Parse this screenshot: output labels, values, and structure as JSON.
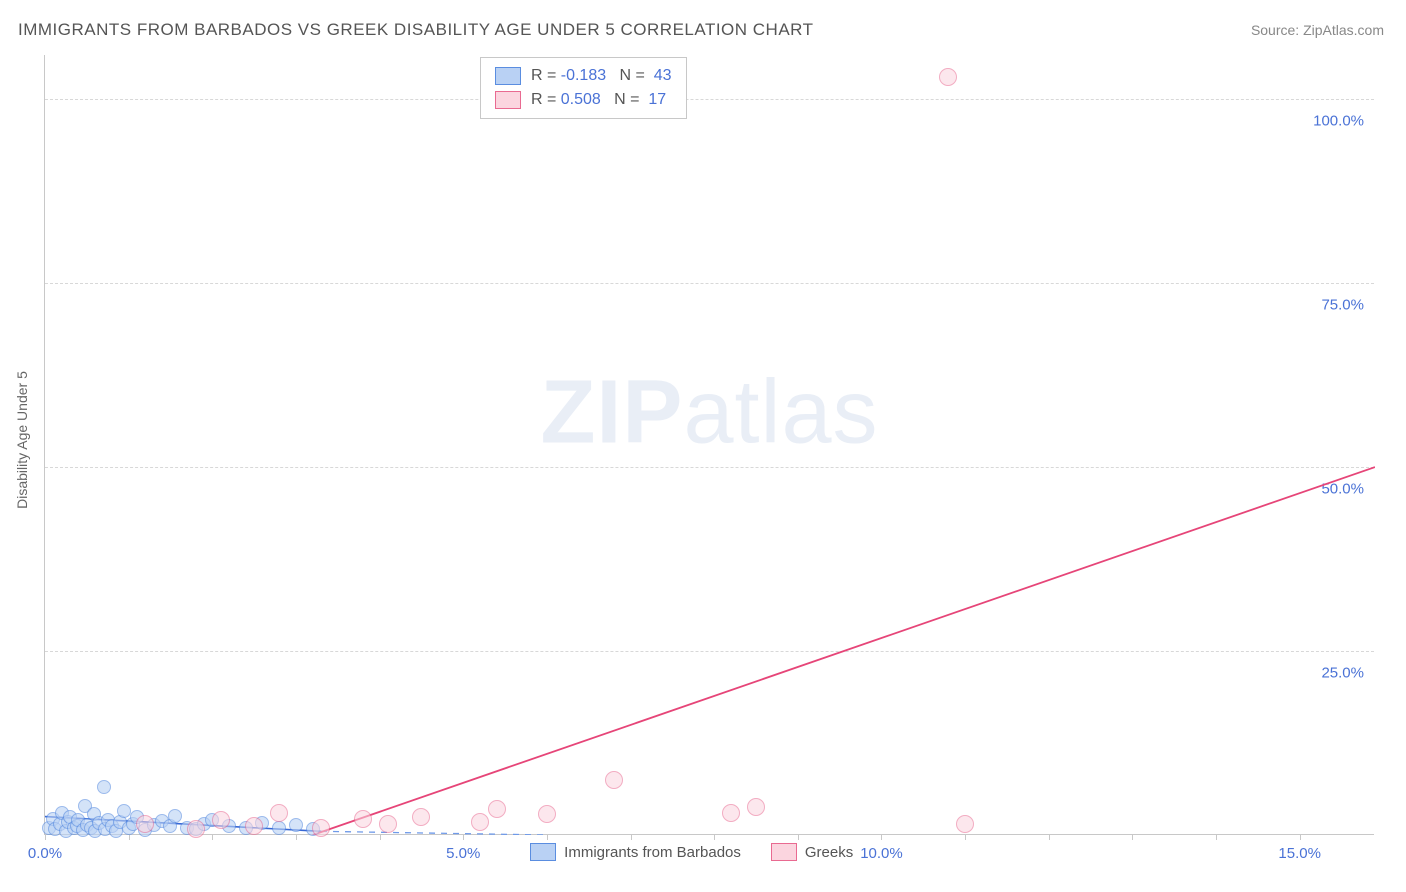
{
  "title": "IMMIGRANTS FROM BARBADOS VS GREEK DISABILITY AGE UNDER 5 CORRELATION CHART",
  "source": "Source: ZipAtlas.com",
  "watermark_bold": "ZIP",
  "watermark_rest": "atlas",
  "y_axis_title": "Disability Age Under 5",
  "chart": {
    "type": "scatter",
    "background_color": "#ffffff",
    "grid_color": "#d8d8d8",
    "axis_color": "#c8c8c8",
    "xlim": [
      0,
      15.9
    ],
    "ylim": [
      0,
      106
    ],
    "xticks": [
      0.0,
      5.0,
      10.0,
      15.0
    ],
    "xtick_labels": [
      "0.0%",
      "5.0%",
      "10.0%",
      "15.0%"
    ],
    "yticks": [
      25.0,
      50.0,
      75.0,
      100.0
    ],
    "ytick_labels": [
      "25.0%",
      "50.0%",
      "75.0%",
      "100.0%"
    ],
    "x_minor_step": 1.0,
    "series": [
      {
        "name": "Immigrants from Barbados",
        "color_fill": "#b9d1f4",
        "color_stroke": "#5a8de0",
        "marker_radius": 7,
        "marker_opacity": 0.6,
        "R": "-0.183",
        "N": "43",
        "trend": {
          "x1": 0.0,
          "y1": 2.5,
          "x2": 3.3,
          "y2": 0.5,
          "stroke": "#3767d4",
          "width": 1.6,
          "dash": "none"
        },
        "trend_ext": {
          "x1": 3.3,
          "y1": 0.5,
          "x2": 6.0,
          "y2": 0.0,
          "stroke": "#6f9ae9",
          "width": 1.3,
          "dash": "6,6"
        },
        "points": [
          {
            "x": 0.05,
            "y": 1.0
          },
          {
            "x": 0.1,
            "y": 2.2
          },
          {
            "x": 0.12,
            "y": 0.8
          },
          {
            "x": 0.18,
            "y": 1.5
          },
          {
            "x": 0.2,
            "y": 3.0
          },
          {
            "x": 0.25,
            "y": 0.6
          },
          {
            "x": 0.28,
            "y": 1.8
          },
          {
            "x": 0.3,
            "y": 2.5
          },
          {
            "x": 0.35,
            "y": 0.9
          },
          {
            "x": 0.38,
            "y": 1.2
          },
          {
            "x": 0.4,
            "y": 2.0
          },
          {
            "x": 0.45,
            "y": 0.7
          },
          {
            "x": 0.48,
            "y": 4.0
          },
          {
            "x": 0.5,
            "y": 1.4
          },
          {
            "x": 0.55,
            "y": 1.0
          },
          {
            "x": 0.58,
            "y": 2.8
          },
          {
            "x": 0.6,
            "y": 0.5
          },
          {
            "x": 0.65,
            "y": 1.6
          },
          {
            "x": 0.7,
            "y": 6.5
          },
          {
            "x": 0.72,
            "y": 0.8
          },
          {
            "x": 0.75,
            "y": 2.0
          },
          {
            "x": 0.8,
            "y": 1.2
          },
          {
            "x": 0.85,
            "y": 0.6
          },
          {
            "x": 0.9,
            "y": 1.8
          },
          {
            "x": 0.95,
            "y": 3.2
          },
          {
            "x": 1.0,
            "y": 0.9
          },
          {
            "x": 1.05,
            "y": 1.5
          },
          {
            "x": 1.1,
            "y": 2.4
          },
          {
            "x": 1.2,
            "y": 0.7
          },
          {
            "x": 1.3,
            "y": 1.3
          },
          {
            "x": 1.4,
            "y": 1.9
          },
          {
            "x": 1.5,
            "y": 1.2
          },
          {
            "x": 1.55,
            "y": 2.6
          },
          {
            "x": 1.7,
            "y": 1.0
          },
          {
            "x": 1.8,
            "y": 0.8
          },
          {
            "x": 1.9,
            "y": 1.5
          },
          {
            "x": 2.0,
            "y": 2.0
          },
          {
            "x": 2.2,
            "y": 1.2
          },
          {
            "x": 2.4,
            "y": 0.9
          },
          {
            "x": 2.6,
            "y": 1.6
          },
          {
            "x": 2.8,
            "y": 1.0
          },
          {
            "x": 3.0,
            "y": 1.4
          },
          {
            "x": 3.2,
            "y": 0.8
          }
        ]
      },
      {
        "name": "Greeks",
        "color_fill": "#fbd5df",
        "color_stroke": "#e96a91",
        "marker_radius": 9,
        "marker_opacity": 0.55,
        "R": "0.508",
        "N": "17",
        "trend": {
          "x1": 3.2,
          "y1": 0.0,
          "x2": 15.9,
          "y2": 50.0,
          "stroke": "#e64578",
          "width": 1.8,
          "dash": "none"
        },
        "points": [
          {
            "x": 1.2,
            "y": 1.5
          },
          {
            "x": 1.8,
            "y": 0.8
          },
          {
            "x": 2.1,
            "y": 2.0
          },
          {
            "x": 2.5,
            "y": 1.2
          },
          {
            "x": 2.8,
            "y": 3.0
          },
          {
            "x": 3.3,
            "y": 1.0
          },
          {
            "x": 3.8,
            "y": 2.2
          },
          {
            "x": 4.1,
            "y": 1.5
          },
          {
            "x": 4.5,
            "y": 2.5
          },
          {
            "x": 5.2,
            "y": 1.8
          },
          {
            "x": 5.4,
            "y": 3.5
          },
          {
            "x": 6.0,
            "y": 2.8
          },
          {
            "x": 6.8,
            "y": 7.5
          },
          {
            "x": 8.2,
            "y": 3.0
          },
          {
            "x": 8.5,
            "y": 3.8
          },
          {
            "x": 11.0,
            "y": 1.5
          },
          {
            "x": 10.8,
            "y": 103.0
          }
        ]
      }
    ]
  },
  "legend_top_labels": {
    "R": "R =",
    "N": "N ="
  },
  "legend_bottom": [
    {
      "label": "Immigrants from Barbados",
      "fill": "#b9d1f4",
      "stroke": "#5a8de0"
    },
    {
      "label": "Greeks",
      "fill": "#fbd5df",
      "stroke": "#e96a91"
    }
  ],
  "colors": {
    "text_dark": "#555555",
    "text_muted": "#888888",
    "value_blue": "#4a72d6"
  }
}
